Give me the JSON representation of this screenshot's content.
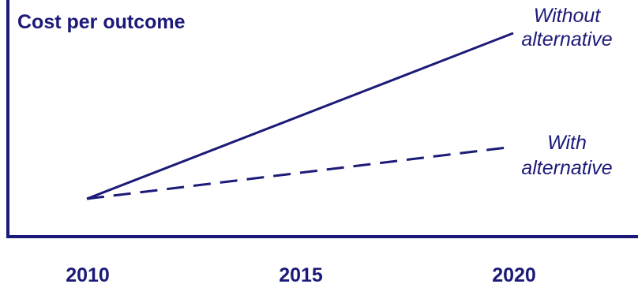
{
  "chart_data": {
    "type": "line",
    "title": "Cost per outcome",
    "xlabel": "",
    "ylabel": "",
    "x_ticks": [
      "2010",
      "2015",
      "2020"
    ],
    "xlim": [
      2005,
      2020
    ],
    "ylim": [
      0,
      100
    ],
    "grid": false,
    "legend": "none",
    "series": [
      {
        "name": "Without alternative",
        "label_lines": [
          "Without",
          "alternative"
        ],
        "style": "solid",
        "points": [
          {
            "x": 2010,
            "y": 16
          },
          {
            "x": 2020,
            "y": 86
          }
        ]
      },
      {
        "name": "With alternative",
        "label_lines": [
          "With",
          "alternative"
        ],
        "style": "dashed",
        "points": [
          {
            "x": 2010,
            "y": 16
          },
          {
            "x": 2020,
            "y": 38
          }
        ]
      }
    ],
    "colors": {
      "line": "#1c1a78",
      "text": "#1c1a78",
      "axis": "#1c1a78"
    }
  }
}
